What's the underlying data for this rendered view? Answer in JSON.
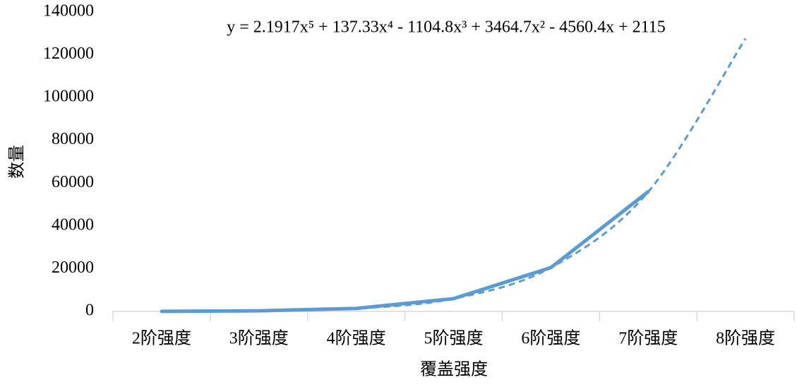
{
  "chart_data": {
    "type": "line",
    "x_label": "覆盖强度",
    "y_label": "数量",
    "categories": [
      "2阶强度",
      "3阶强度",
      "4阶强度",
      "5阶强度",
      "6阶强度",
      "7阶强度",
      "8阶强度"
    ],
    "values": [
      50,
      300,
      1400,
      6000,
      20500,
      56000,
      null
    ],
    "color": "#5b9bd5",
    "trendline": {
      "equation": "y = 2.1917x⁵ + 137.33x⁴ - 1104.8x³ + 3464.7x² - 4560.4x + 2115",
      "color": "#5b9bd5",
      "dashed": true,
      "values": [
        50,
        300,
        1400,
        6000,
        20500,
        55900,
        127600
      ]
    },
    "ylim": [
      0,
      140000
    ],
    "yticks": [
      0,
      20000,
      40000,
      60000,
      80000,
      100000,
      120000,
      140000
    ],
    "grid": false
  }
}
